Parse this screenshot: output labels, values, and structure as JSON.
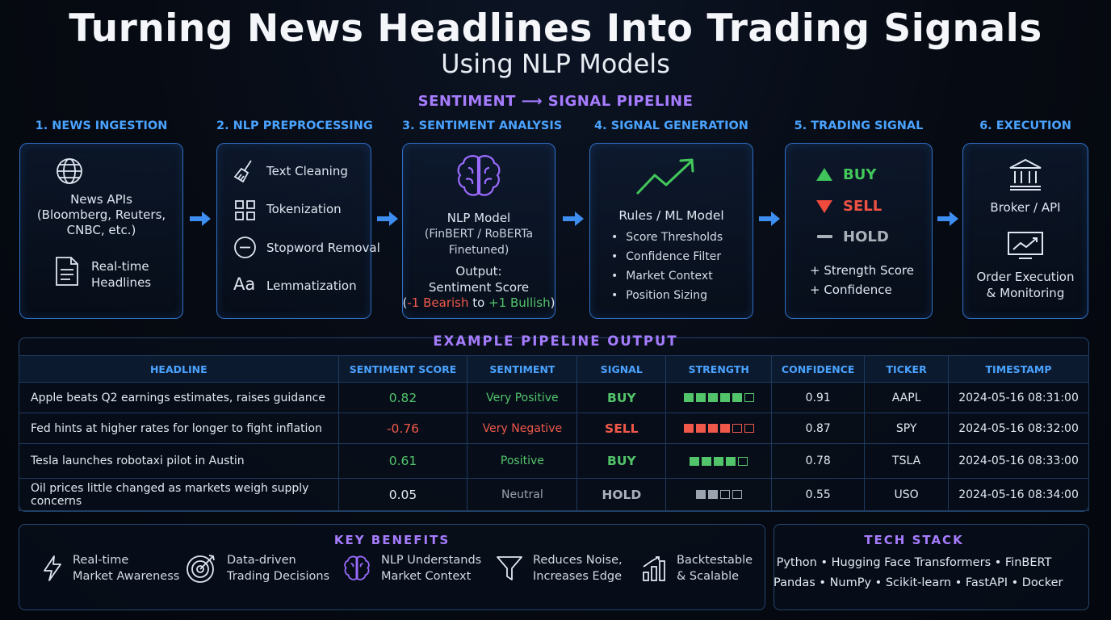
{
  "header": {
    "title": "Turning News Headlines Into Trading Signals",
    "subtitle": "Using NLP Models",
    "pipeline_label": "SENTIMENT ⟶ SIGNAL PIPELINE"
  },
  "steps": [
    {
      "title": "1. NEWS INGESTION",
      "items": [
        "News APIs",
        "(Bloomberg, Reuters,",
        "CNBC, etc.)",
        "Real-time",
        "Headlines"
      ]
    },
    {
      "title": "2. NLP PREPROCESSING",
      "items": [
        "Text Cleaning",
        "Tokenization",
        "Stopword Removal",
        "Lemmatization"
      ]
    },
    {
      "title": "3. SENTIMENT ANALYSIS",
      "model": "NLP Model",
      "model_sub1": "(FinBERT / RoBERTa",
      "model_sub2": "Finetuned)",
      "output1": "Output:",
      "output2": "Sentiment Score",
      "range_open": "(",
      "range_bear": "-1 Bearish",
      "range_to": " to ",
      "range_bull": "+1 Bullish",
      "range_close": ")"
    },
    {
      "title": "4. SIGNAL GENERATION",
      "heading": "Rules / ML Model",
      "items": [
        "Score Thresholds",
        "Confidence Filter",
        "Market Context",
        "Position Sizing"
      ]
    },
    {
      "title": "5. TRADING SIGNAL",
      "buy": "BUY",
      "sell": "SELL",
      "hold": "HOLD",
      "extra1": "+ Strength Score",
      "extra2": "+ Confidence"
    },
    {
      "title": "6. EXECUTION",
      "broker": "Broker / API",
      "order1": "Order Execution",
      "order2": "& Monitoring"
    }
  ],
  "table": {
    "title": "EXAMPLE PIPELINE OUTPUT",
    "headers": [
      "HEADLINE",
      "SENTIMENT SCORE",
      "SENTIMENT",
      "SIGNAL",
      "STRENGTH",
      "CONFIDENCE",
      "TICKER",
      "TIMESTAMP"
    ],
    "rows": [
      {
        "headline": "Apple beats Q2 earnings estimates, raises guidance",
        "score": "0.82",
        "sentiment": "Very Positive",
        "signal": "BUY",
        "strength": 5,
        "confidence": "0.91",
        "ticker": "AAPL",
        "timestamp": "2024-05-16 08:31:00",
        "tone": "pos"
      },
      {
        "headline": "Fed hints at higher rates for longer to fight inflation",
        "score": "-0.76",
        "sentiment": "Very Negative",
        "signal": "SELL",
        "strength": 4,
        "confidence": "0.87",
        "ticker": "SPY",
        "timestamp": "2024-05-16 08:32:00",
        "tone": "neg"
      },
      {
        "headline": "Tesla launches robotaxi pilot in Austin",
        "score": "0.61",
        "sentiment": "Positive",
        "signal": "BUY",
        "strength": 4,
        "confidence": "0.78",
        "ticker": "TSLA",
        "timestamp": "2024-05-16 08:33:00",
        "tone": "pos"
      },
      {
        "headline": "Oil prices little changed as markets weigh supply concerns",
        "score": "0.05",
        "sentiment": "Neutral",
        "signal": "HOLD",
        "strength": 2,
        "confidence": "0.55",
        "ticker": "USO",
        "timestamp": "2024-05-16 08:34:00",
        "tone": "neu"
      }
    ],
    "strength_max": [
      6,
      6,
      5,
      4
    ]
  },
  "benefits": {
    "title": "KEY BENEFITS",
    "items": [
      {
        "l1": "Real-time",
        "l2": "Market Awareness",
        "icon": "lightning-icon"
      },
      {
        "l1": "Data-driven",
        "l2": "Trading Decisions",
        "icon": "target-icon"
      },
      {
        "l1": "NLP Understands",
        "l2": "Market Context",
        "icon": "brain-icon"
      },
      {
        "l1": "Reduces Noise,",
        "l2": "Increases Edge",
        "icon": "filter-icon"
      },
      {
        "l1": "Backtestable",
        "l2": "& Scalable",
        "icon": "bar-chart-icon"
      }
    ]
  },
  "tech": {
    "title": "TECH STACK",
    "line1": "Python  •  Hugging Face Transformers  •  FinBERT",
    "line2": "Pandas  •  NumPy  •  Scikit-learn  •  FastAPI  •  Docker"
  },
  "colors": {
    "accent_blue": "#4aa3ff",
    "accent_purple": "#a67cff",
    "positive": "#52c46a",
    "negative": "#f0584a",
    "neutral": "#9aa3ae"
  }
}
